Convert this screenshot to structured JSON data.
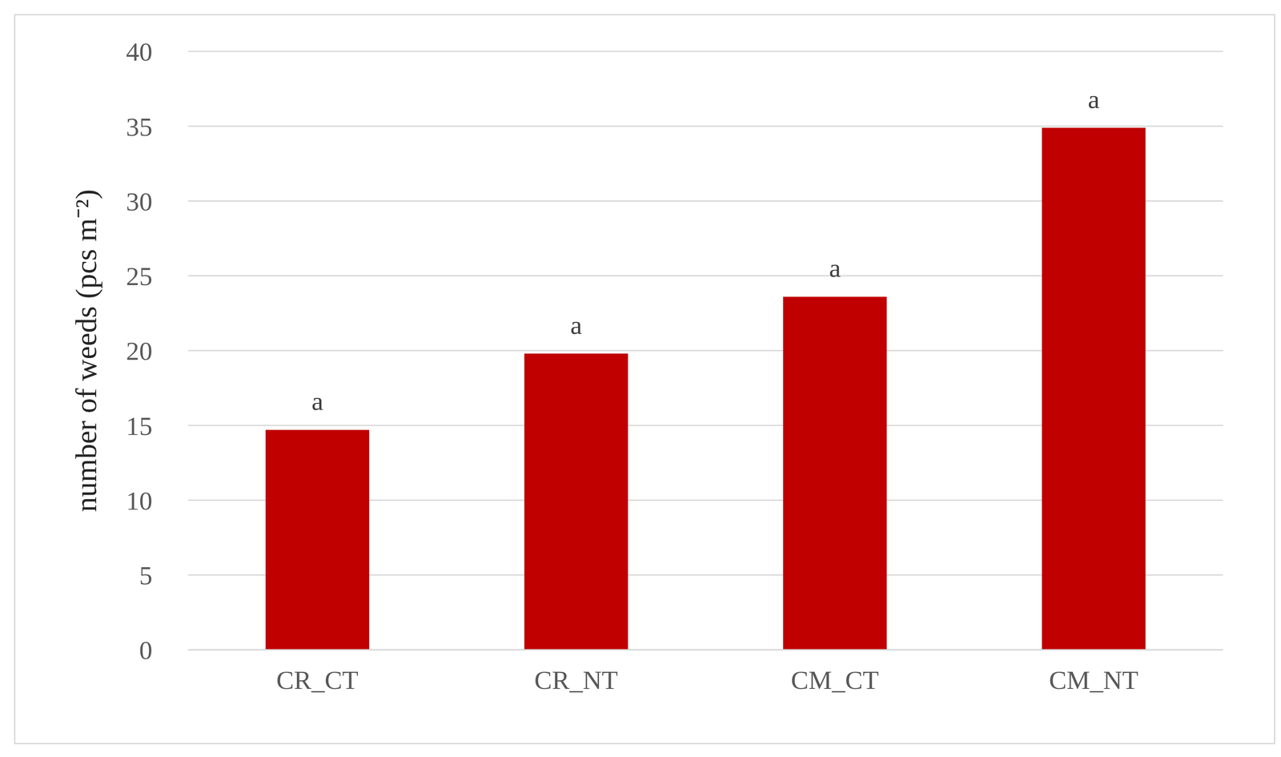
{
  "chart_data": {
    "type": "bar",
    "y_label": "number of weeds (pcs m⁻²)",
    "categories": [
      "CR_CT",
      "CR_NT",
      "CM_CT",
      "CM_NT"
    ],
    "values": [
      14.7,
      19.8,
      23.6,
      34.9
    ],
    "annotations": [
      "a",
      "a",
      "a",
      "a"
    ],
    "color": "#c00000",
    "ylim": [
      0,
      40
    ],
    "yticks": [
      0,
      5,
      10,
      15,
      20,
      25,
      30,
      35,
      40
    ],
    "grid": true
  }
}
